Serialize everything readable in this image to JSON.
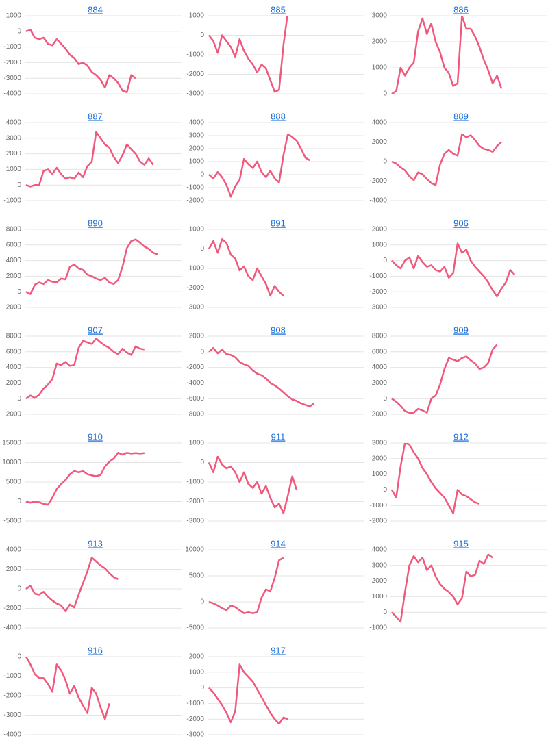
{
  "chart_data": [
    {
      "type": "line",
      "title": "884",
      "color": "#f0587c",
      "ylim": [
        -4000,
        1000
      ],
      "yticks": [
        -4000,
        -3000,
        -2000,
        -1000,
        0,
        1000
      ],
      "grid": true,
      "values": [
        0,
        100,
        -400,
        -500,
        -400,
        -800,
        -900,
        -500,
        -800,
        -1100,
        -1500,
        -1700,
        -2100,
        -2000,
        -2200,
        -2600,
        -2800,
        -3100,
        -3600,
        -2800,
        -3000,
        -3300,
        -3800,
        -3900,
        -2800,
        -3000,
        null,
        null,
        null,
        null,
        null,
        null,
        null,
        null,
        null,
        null
      ]
    },
    {
      "type": "line",
      "title": "885",
      "color": "#f0587c",
      "ylim": [
        -3000,
        1000
      ],
      "yticks": [
        -3000,
        -2000,
        -1000,
        0,
        1000
      ],
      "grid": true,
      "values": [
        0,
        -300,
        -900,
        0,
        -300,
        -600,
        -1100,
        -200,
        -800,
        -1200,
        -1500,
        -1900,
        -1500,
        -1700,
        -2300,
        -2900,
        -2800,
        -500,
        1200,
        null,
        null,
        null,
        null,
        null,
        null,
        null,
        null,
        null,
        null,
        null,
        null,
        null,
        null,
        null,
        null,
        null
      ]
    },
    {
      "type": "line",
      "title": "886",
      "color": "#f0587c",
      "ylim": [
        0,
        3000
      ],
      "yticks": [
        0,
        1000,
        2000,
        3000
      ],
      "grid": true,
      "values": [
        0,
        100,
        1000,
        700,
        1000,
        1200,
        2400,
        2900,
        2300,
        2700,
        2000,
        1600,
        1000,
        800,
        300,
        400,
        3000,
        2500,
        2500,
        2200,
        1800,
        1300,
        900,
        400,
        700,
        200,
        null,
        null,
        null,
        null,
        null,
        null,
        null,
        null,
        null,
        null
      ]
    },
    {
      "type": "line",
      "title": "887",
      "color": "#f0587c",
      "ylim": [
        -1000,
        4000
      ],
      "yticks": [
        -1000,
        0,
        1000,
        2000,
        3000,
        4000
      ],
      "grid": true,
      "values": [
        0,
        -100,
        0,
        0,
        900,
        1000,
        700,
        1100,
        700,
        400,
        500,
        400,
        800,
        500,
        1200,
        1500,
        3400,
        3000,
        2600,
        2400,
        1800,
        1400,
        1900,
        2600,
        2300,
        2000,
        1500,
        1300,
        1700,
        1300,
        null,
        null,
        null,
        null,
        null,
        null
      ]
    },
    {
      "type": "line",
      "title": "888",
      "color": "#f0587c",
      "ylim": [
        -2000,
        4000
      ],
      "yticks": [
        -2000,
        -1000,
        0,
        1000,
        2000,
        3000,
        4000
      ],
      "grid": true,
      "values": [
        0,
        -300,
        200,
        -200,
        -800,
        -1700,
        -900,
        -400,
        1200,
        800,
        500,
        1000,
        200,
        -200,
        300,
        -300,
        -600,
        1500,
        3100,
        2900,
        2600,
        2000,
        1300,
        1100,
        null,
        null,
        null,
        null,
        null,
        null,
        null,
        null,
        null,
        null,
        null,
        null
      ]
    },
    {
      "type": "line",
      "title": "889",
      "color": "#f0587c",
      "ylim": [
        -4000,
        4000
      ],
      "yticks": [
        -4000,
        -2000,
        0,
        2000,
        4000
      ],
      "grid": true,
      "values": [
        0,
        -200,
        -600,
        -900,
        -1500,
        -1900,
        -1100,
        -1300,
        -1800,
        -2200,
        -2400,
        -300,
        800,
        1200,
        800,
        600,
        2800,
        2500,
        2700,
        2200,
        1600,
        1300,
        1200,
        1000,
        1600,
        2000,
        null,
        null,
        null,
        null,
        null,
        null,
        null,
        null,
        null,
        null
      ]
    },
    {
      "type": "line",
      "title": "890",
      "color": "#f0587c",
      "ylim": [
        -2000,
        8000
      ],
      "yticks": [
        -2000,
        0,
        2000,
        4000,
        6000,
        8000
      ],
      "grid": true,
      "values": [
        0,
        -300,
        900,
        1200,
        1000,
        1500,
        1300,
        1200,
        1700,
        1600,
        3200,
        3500,
        3000,
        2800,
        2200,
        2000,
        1700,
        1500,
        1800,
        1200,
        1000,
        1500,
        3200,
        5600,
        6500,
        6700,
        6300,
        5800,
        5500,
        5000,
        4800,
        null,
        null,
        null,
        null,
        null
      ]
    },
    {
      "type": "line",
      "title": "891",
      "color": "#f0587c",
      "ylim": [
        -3000,
        1000
      ],
      "yticks": [
        -3000,
        -2000,
        -1000,
        0,
        1000
      ],
      "grid": true,
      "values": [
        0,
        400,
        -200,
        500,
        300,
        -300,
        -500,
        -1100,
        -900,
        -1400,
        -1600,
        -1000,
        -1400,
        -1800,
        -2400,
        -1900,
        -2200,
        -2400,
        null,
        null,
        null,
        null,
        null,
        null,
        null,
        null,
        null,
        null,
        null,
        null,
        null,
        null,
        null,
        null,
        null,
        null
      ]
    },
    {
      "type": "line",
      "title": "906",
      "color": "#f0587c",
      "ylim": [
        -3000,
        2000
      ],
      "yticks": [
        -3000,
        -2000,
        -1000,
        0,
        1000,
        2000
      ],
      "grid": true,
      "values": [
        0,
        -300,
        -500,
        0,
        200,
        -500,
        300,
        -100,
        -400,
        -300,
        -600,
        -700,
        -400,
        -1100,
        -800,
        1100,
        500,
        700,
        0,
        -400,
        -700,
        -1000,
        -1400,
        -1900,
        -2300,
        -1800,
        -1400,
        -600,
        -900,
        null,
        null,
        null,
        null,
        null,
        null,
        null
      ]
    },
    {
      "type": "line",
      "title": "907",
      "color": "#f0587c",
      "ylim": [
        -2000,
        8000
      ],
      "yticks": [
        -2000,
        0,
        2000,
        4000,
        6000,
        8000
      ],
      "grid": true,
      "values": [
        0,
        400,
        100,
        500,
        1300,
        1800,
        2500,
        4500,
        4300,
        4700,
        4200,
        4300,
        6500,
        7400,
        7200,
        7000,
        7700,
        7200,
        6800,
        6500,
        6000,
        5700,
        6400,
        5900,
        5600,
        6700,
        6400,
        6300,
        null,
        null,
        null,
        null,
        null,
        null,
        null,
        null
      ]
    },
    {
      "type": "line",
      "title": "908",
      "color": "#f0587c",
      "ylim": [
        -8000,
        2000
      ],
      "yticks": [
        -8000,
        -6000,
        -4000,
        -2000,
        0,
        2000
      ],
      "grid": true,
      "values": [
        0,
        500,
        -200,
        300,
        -300,
        -400,
        -700,
        -1300,
        -1600,
        -1800,
        -2400,
        -2800,
        -3000,
        -3400,
        -4000,
        -4300,
        -4700,
        -5200,
        -5700,
        -6100,
        -6300,
        -6600,
        -6800,
        -7000,
        -6600,
        null,
        null,
        null,
        null,
        null,
        null,
        null,
        null,
        null,
        null,
        null
      ]
    },
    {
      "type": "line",
      "title": "909",
      "color": "#f0587c",
      "ylim": [
        -2000,
        8000
      ],
      "yticks": [
        -2000,
        0,
        2000,
        4000,
        6000,
        8000
      ],
      "grid": true,
      "values": [
        0,
        -400,
        -900,
        -1600,
        -1800,
        -1800,
        -1300,
        -1500,
        -1800,
        0,
        400,
        1800,
        3800,
        5200,
        5000,
        4800,
        5200,
        5400,
        4900,
        4500,
        3800,
        4000,
        4600,
        6300,
        6900,
        null,
        null,
        null,
        null,
        null,
        null,
        null,
        null,
        null,
        null,
        null
      ]
    },
    {
      "type": "line",
      "title": "910",
      "color": "#f0587c",
      "ylim": [
        -5000,
        15000
      ],
      "yticks": [
        -5000,
        0,
        5000,
        10000,
        15000
      ],
      "grid": true,
      "values": [
        0,
        -300,
        0,
        -200,
        -600,
        -800,
        1000,
        3200,
        4500,
        5500,
        7000,
        7800,
        7500,
        7800,
        7000,
        6700,
        6500,
        6800,
        9000,
        10200,
        11000,
        12500,
        12000,
        12500,
        12300,
        12400,
        12300,
        12400,
        null,
        null,
        null,
        null,
        null,
        null,
        null,
        null
      ]
    },
    {
      "type": "line",
      "title": "911",
      "color": "#f0587c",
      "ylim": [
        -3000,
        1000
      ],
      "yticks": [
        -3000,
        -2000,
        -1000,
        0,
        1000
      ],
      "grid": true,
      "values": [
        0,
        -500,
        300,
        -100,
        -300,
        -200,
        -500,
        -1000,
        -500,
        -1100,
        -1300,
        -1000,
        -1600,
        -1200,
        -1800,
        -2300,
        -2100,
        -2600,
        -1700,
        -700,
        -1400,
        null,
        null,
        null,
        null,
        null,
        null,
        null,
        null,
        null,
        null,
        null,
        null,
        null,
        null,
        null
      ]
    },
    {
      "type": "line",
      "title": "912",
      "color": "#f0587c",
      "ylim": [
        -2000,
        3000
      ],
      "yticks": [
        -2000,
        -1000,
        0,
        1000,
        2000,
        3000
      ],
      "grid": true,
      "values": [
        0,
        -500,
        1500,
        3000,
        2900,
        2400,
        2000,
        1400,
        1000,
        500,
        100,
        -200,
        -500,
        -1000,
        -1500,
        0,
        -300,
        -400,
        -600,
        -800,
        -900,
        null,
        null,
        null,
        null,
        null,
        null,
        null,
        null,
        null,
        null,
        null,
        null,
        null,
        null,
        null
      ]
    },
    {
      "type": "line",
      "title": "913",
      "color": "#f0587c",
      "ylim": [
        -4000,
        4000
      ],
      "yticks": [
        -4000,
        -2000,
        0,
        2000,
        4000
      ],
      "grid": true,
      "values": [
        0,
        300,
        -500,
        -600,
        -300,
        -800,
        -1200,
        -1500,
        -1700,
        -2300,
        -1600,
        -1900,
        -600,
        600,
        1800,
        3200,
        2800,
        2400,
        2100,
        1600,
        1200,
        1000,
        null,
        null,
        null,
        null,
        null,
        null,
        null,
        null,
        null,
        null,
        null,
        null,
        null,
        null
      ]
    },
    {
      "type": "line",
      "title": "914",
      "color": "#f0587c",
      "ylim": [
        -5000,
        10000
      ],
      "yticks": [
        -5000,
        0,
        5000,
        10000
      ],
      "grid": true,
      "values": [
        0,
        -300,
        -700,
        -1200,
        -1600,
        -700,
        -1000,
        -1600,
        -2200,
        -2000,
        -2200,
        -2000,
        800,
        2400,
        2000,
        4600,
        8000,
        8500,
        null,
        null,
        null,
        null,
        null,
        null,
        null,
        null,
        null,
        null,
        null,
        null,
        null,
        null,
        null,
        null,
        null,
        null
      ]
    },
    {
      "type": "line",
      "title": "915",
      "color": "#f0587c",
      "ylim": [
        -1000,
        4000
      ],
      "yticks": [
        -1000,
        0,
        1000,
        2000,
        3000,
        4000
      ],
      "grid": true,
      "values": [
        0,
        -300,
        -600,
        1300,
        3000,
        3600,
        3200,
        3500,
        2700,
        3000,
        2300,
        1800,
        1500,
        1300,
        1000,
        500,
        900,
        2600,
        2300,
        2400,
        3300,
        3100,
        3700,
        3500,
        null,
        null,
        null,
        null,
        null,
        null,
        null,
        null,
        null,
        null,
        null,
        null
      ]
    },
    {
      "type": "line",
      "title": "916",
      "color": "#f0587c",
      "ylim": [
        -4000,
        0
      ],
      "yticks": [
        -4000,
        -3000,
        -2000,
        -1000,
        0
      ],
      "grid": true,
      "values": [
        0,
        -400,
        -900,
        -1100,
        -1100,
        -1400,
        -1800,
        -400,
        -700,
        -1200,
        -1900,
        -1500,
        -2100,
        -2500,
        -2900,
        -1600,
        -1900,
        -2600,
        -3200,
        -2400,
        null,
        null,
        null,
        null,
        null,
        null,
        null,
        null,
        null,
        null,
        null,
        null,
        null,
        null,
        null,
        null
      ]
    },
    {
      "type": "line",
      "title": "917",
      "color": "#f0587c",
      "ylim": [
        -3000,
        2000
      ],
      "yticks": [
        -3000,
        -2000,
        -1000,
        0,
        1000,
        2000
      ],
      "grid": true,
      "values": [
        0,
        -300,
        -700,
        -1100,
        -1600,
        -2200,
        -1500,
        1500,
        1000,
        700,
        400,
        -100,
        -600,
        -1100,
        -1600,
        -2000,
        -2300,
        -1900,
        -2000,
        null,
        null,
        null,
        null,
        null,
        null,
        null,
        null,
        null,
        null,
        null,
        null,
        null,
        null,
        null,
        null,
        null
      ]
    }
  ]
}
